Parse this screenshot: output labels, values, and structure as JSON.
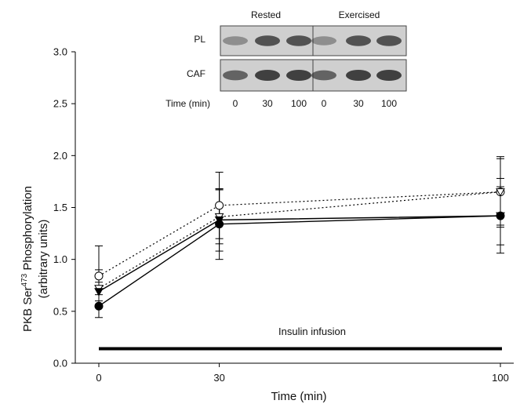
{
  "chart_data": {
    "type": "line",
    "xlabel": "Time (min)",
    "ylabel_line1": "PKB Ser",
    "ylabel_sup": "473",
    "ylabel_line1_rest": " Phosphorylation",
    "ylabel_line2": "(arbitrary units)",
    "x": [
      0,
      30,
      100
    ],
    "x_ticks": [
      "0",
      "30",
      "100"
    ],
    "ylim": [
      0,
      3.0
    ],
    "y_ticks": [
      "0.0",
      "0.5",
      "1.0",
      "1.5",
      "2.0",
      "2.5",
      "3.0"
    ],
    "grid": false,
    "series": [
      {
        "marker": "filled-circle",
        "style": "solid",
        "values": [
          0.55,
          1.34,
          1.42
        ],
        "err": [
          0.11,
          0.34,
          0.36
        ]
      },
      {
        "marker": "filled-triangle-down",
        "style": "solid",
        "values": [
          0.69,
          1.38,
          1.42
        ],
        "err": [
          0.09,
          0.3,
          0.28
        ]
      },
      {
        "marker": "open-circle",
        "style": "dotted",
        "values": [
          0.84,
          1.52,
          1.65
        ],
        "err": [
          0.29,
          0.32,
          0.32
        ]
      },
      {
        "marker": "open-triangle-down",
        "style": "dotted",
        "values": [
          0.72,
          1.41,
          1.65
        ],
        "err": [
          0.18,
          0.26,
          0.34
        ]
      }
    ],
    "annotation": {
      "text": "Insulin infusion",
      "y": 0.14,
      "x_range": [
        0,
        100
      ]
    }
  },
  "blot": {
    "rested_label": "Rested",
    "exercised_label": "Exercised",
    "row_pl": "PL",
    "row_caf": "CAF",
    "time_label": "Time (min)",
    "lanes": [
      "0",
      "30",
      "100",
      "0",
      "30",
      "100"
    ]
  },
  "colors": {
    "ink": "#000000",
    "blot_bg": "#cfcfcf",
    "band": "#303030"
  }
}
